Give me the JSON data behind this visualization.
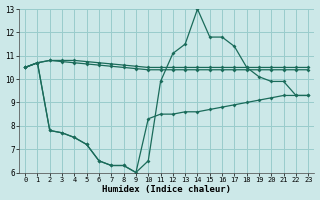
{
  "bg_color": "#cce8e8",
  "grid_color": "#99cccc",
  "line_color": "#1a6b5a",
  "xlabel": "Humidex (Indice chaleur)",
  "xlim": [
    -0.5,
    23.5
  ],
  "ylim": [
    6,
    13
  ],
  "xticks": [
    0,
    1,
    2,
    3,
    4,
    5,
    6,
    7,
    8,
    9,
    10,
    11,
    12,
    13,
    14,
    15,
    16,
    17,
    18,
    19,
    20,
    21,
    22,
    23
  ],
  "yticks": [
    6,
    7,
    8,
    9,
    10,
    11,
    12,
    13
  ],
  "line1_y": [
    10.5,
    10.7,
    10.8,
    10.8,
    10.8,
    10.75,
    10.7,
    10.65,
    10.6,
    10.55,
    10.5,
    10.5,
    10.5,
    10.5,
    10.5,
    10.5,
    10.5,
    10.5,
    10.5,
    10.5,
    10.5,
    10.5,
    10.5,
    10.5
  ],
  "line2_y": [
    10.5,
    10.7,
    10.8,
    10.75,
    10.7,
    10.65,
    10.6,
    10.55,
    10.5,
    10.45,
    10.4,
    10.4,
    10.4,
    10.4,
    10.4,
    10.4,
    10.4,
    10.4,
    10.4,
    10.4,
    10.4,
    10.4,
    10.4,
    10.4
  ],
  "line3_y": [
    10.5,
    10.7,
    7.8,
    7.7,
    7.5,
    7.2,
    6.5,
    6.3,
    6.3,
    6.0,
    6.5,
    9.9,
    11.1,
    11.5,
    13.0,
    11.8,
    11.8,
    11.4,
    10.5,
    10.1,
    9.9,
    9.9,
    9.3,
    9.3
  ],
  "line4_y": [
    10.5,
    10.7,
    7.8,
    7.7,
    7.5,
    7.2,
    6.5,
    6.3,
    6.3,
    6.0,
    8.3,
    8.5,
    8.5,
    8.6,
    8.6,
    8.7,
    8.8,
    8.9,
    9.0,
    9.1,
    9.2,
    9.3,
    9.3,
    9.3
  ]
}
